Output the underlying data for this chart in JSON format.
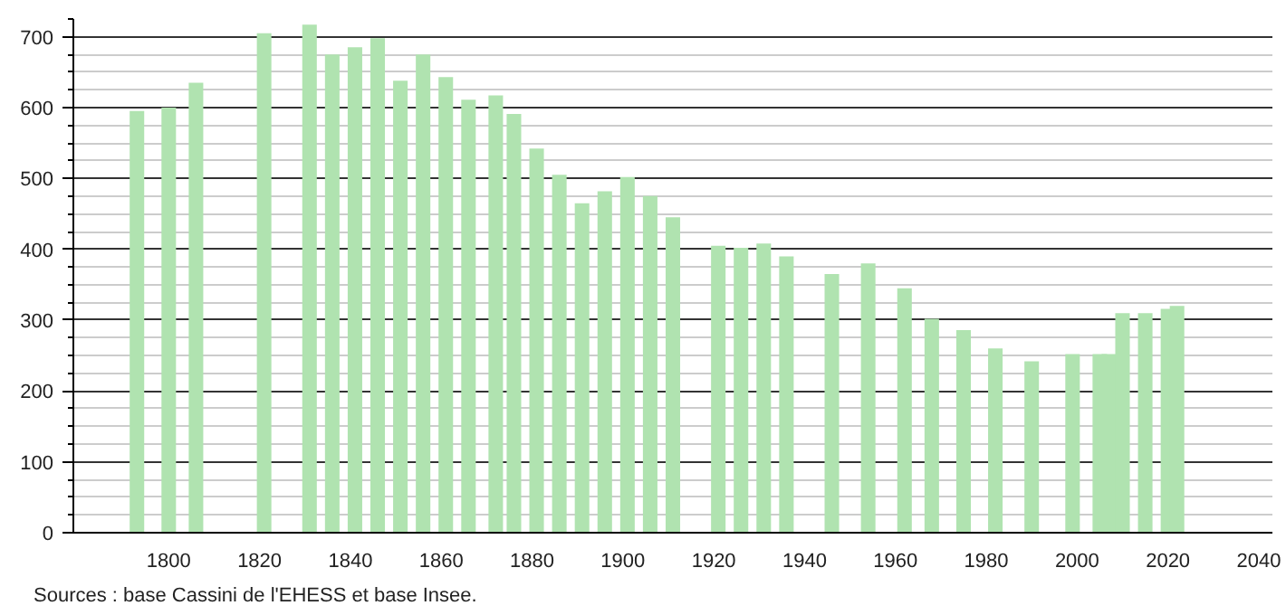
{
  "chart_data": {
    "type": "bar",
    "x": [
      1793,
      1800,
      1806,
      1821,
      1831,
      1836,
      1841,
      1846,
      1851,
      1856,
      1861,
      1866,
      1872,
      1876,
      1881,
      1886,
      1891,
      1896,
      1901,
      1906,
      1911,
      1921,
      1926,
      1931,
      1936,
      1946,
      1954,
      1962,
      1968,
      1975,
      1982,
      1990,
      1999,
      2005,
      2007,
      2010,
      2015,
      2020,
      2022
    ],
    "values": [
      595,
      600,
      635,
      705,
      717,
      675,
      685,
      698,
      638,
      675,
      643,
      611,
      617,
      591,
      542,
      505,
      465,
      482,
      502,
      475,
      445,
      405,
      402,
      408,
      390,
      365,
      380,
      345,
      302,
      286,
      260,
      242,
      252,
      252,
      252,
      310,
      310,
      316,
      320
    ],
    "color": "#b0e3b0",
    "xlim": [
      1779,
      2043
    ],
    "xticks": [
      1800,
      1820,
      1840,
      1860,
      1880,
      1900,
      1920,
      1940,
      1960,
      1980,
      2000,
      2020,
      2040
    ],
    "ylim": [
      0,
      725
    ],
    "yticks": [
      0,
      100,
      200,
      300,
      400,
      500,
      600,
      700
    ],
    "grid": "y",
    "annotations": [
      "Sources : base Cassini de l'EHESS et base Insee."
    ]
  }
}
